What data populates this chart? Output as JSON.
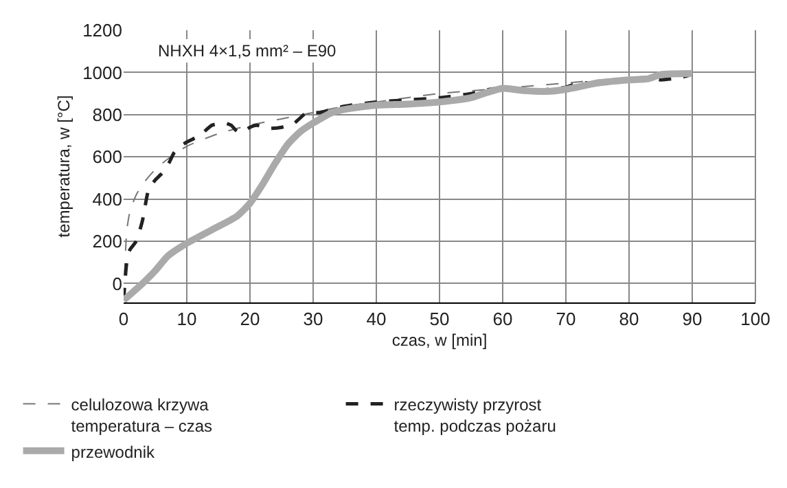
{
  "chart_data": {
    "type": "line",
    "xlabel": "czas, w [min]",
    "ylabel": "temperatura, w [°C]",
    "annotations": [
      "NHXH 4×1,5 mm² – E90"
    ],
    "xlim": [
      0,
      100
    ],
    "xticks": [
      0,
      10,
      20,
      30,
      40,
      50,
      60,
      70,
      80,
      90,
      100
    ],
    "ylim": [
      -90,
      1200
    ],
    "yticks": [
      0,
      200,
      400,
      600,
      800,
      1000,
      1200
    ],
    "grid": true,
    "legend": "bottom",
    "series": [
      {
        "name": "celulozowa krzywa\ntemperatura – czas",
        "color": "#777777",
        "line_style": "dashed",
        "x": [
          0,
          0.5,
          1,
          2,
          3,
          5,
          7,
          10,
          15,
          20,
          25,
          30,
          35,
          40,
          50,
          60,
          70,
          80,
          90
        ],
        "values": [
          -80,
          250,
          340,
          420,
          470,
          540,
          590,
          650,
          710,
          750,
          780,
          810,
          840,
          860,
          900,
          925,
          950,
          975,
          990
        ]
      },
      {
        "name": "rzeczywisty przyrost\ntemp. podczas pożaru",
        "color": "#222222",
        "line_style": "dashed",
        "x": [
          0,
          0.5,
          1,
          2,
          3,
          4,
          5,
          6,
          7,
          8,
          9,
          10,
          12,
          14,
          16,
          17,
          18,
          19,
          20,
          21,
          23,
          25,
          27,
          29,
          31,
          35,
          40,
          45,
          50,
          55,
          58,
          60,
          65,
          70,
          72,
          75,
          80,
          83,
          85,
          88,
          90
        ],
        "values": [
          -80,
          100,
          160,
          200,
          300,
          450,
          490,
          520,
          560,
          620,
          650,
          670,
          700,
          750,
          760,
          750,
          720,
          720,
          740,
          750,
          735,
          740,
          760,
          810,
          810,
          840,
          860,
          870,
          880,
          900,
          920,
          925,
          915,
          930,
          950,
          950,
          970,
          975,
          965,
          975,
          990
        ]
      },
      {
        "name": "przewodnik",
        "color": "#aaaaaa",
        "line_style": "solid",
        "x": [
          0,
          3,
          5,
          7,
          10,
          15,
          18,
          20,
          22,
          24,
          26,
          28,
          30,
          33,
          36,
          40,
          45,
          50,
          55,
          57,
          60,
          63,
          67,
          70,
          75,
          80,
          83,
          85,
          90
        ],
        "values": [
          -80,
          0,
          60,
          130,
          190,
          270,
          320,
          380,
          470,
          570,
          660,
          720,
          760,
          810,
          830,
          845,
          850,
          860,
          880,
          900,
          925,
          915,
          910,
          920,
          950,
          965,
          970,
          990,
          995
        ]
      }
    ]
  }
}
